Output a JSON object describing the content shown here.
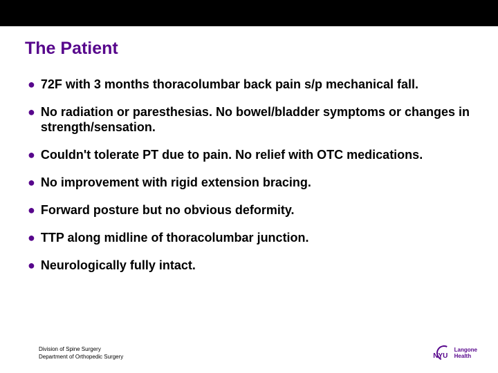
{
  "colors": {
    "accent": "#57068c",
    "topbar": "#000000",
    "background": "#ffffff",
    "text": "#000000"
  },
  "title": "The Patient",
  "bullets": [
    "72F with 3 months thoracolumbar back pain s/p mechanical fall.",
    "No radiation or paresthesias. No bowel/bladder symptoms or changes in strength/sensation.",
    "Couldn't tolerate PT due to pain. No relief with OTC medications.",
    "No improvement with rigid extension bracing.",
    "Forward posture but no obvious deformity.",
    "TTP along midline of thoracolumbar junction.",
    "Neurologically fully intact."
  ],
  "footer": {
    "line1": "Division of Spine Surgery",
    "line2": "Department of Orthopedic Surgery"
  },
  "logo": {
    "brand": "NYU",
    "line1": "Langone",
    "line2": "Health"
  }
}
